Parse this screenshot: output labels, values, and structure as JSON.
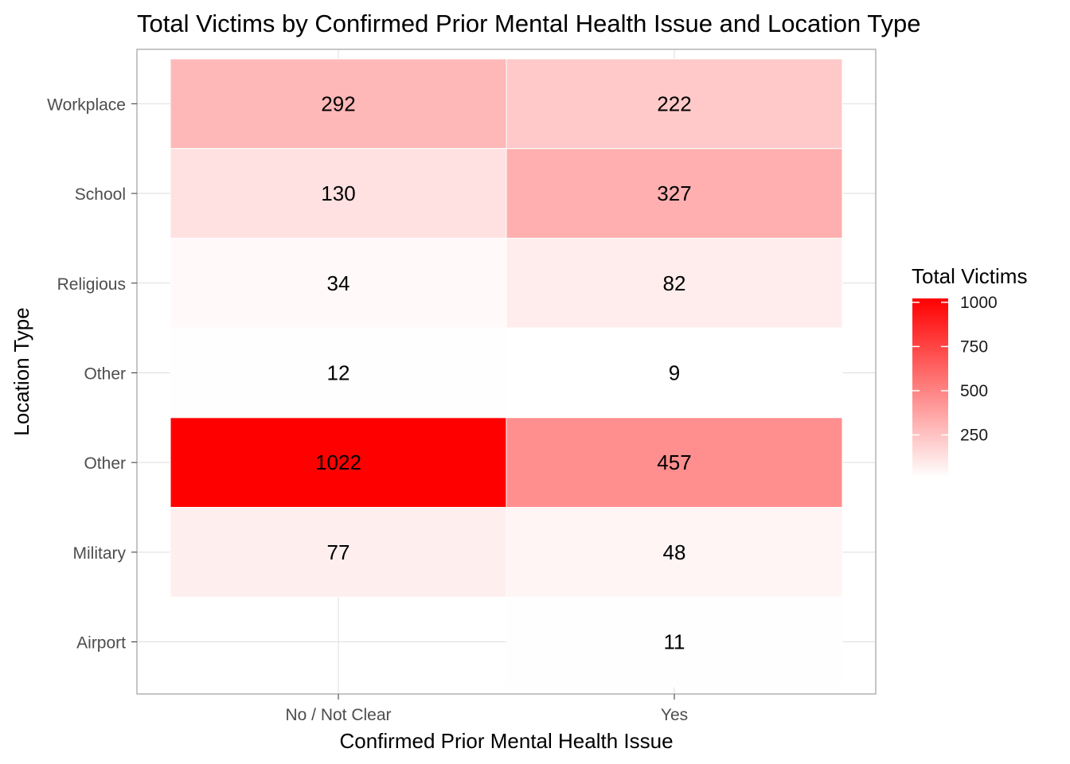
{
  "chart_data": {
    "type": "heatmap",
    "title": "Total Victims by Confirmed Prior Mental Health Issue and Location Type",
    "xlabel": "Confirmed Prior Mental Health Issue",
    "ylabel": "Location Type",
    "x_categories": [
      "No / Not Clear",
      "Yes"
    ],
    "y_categories": [
      "Workplace",
      "School",
      "Religious",
      "Other",
      "Other",
      "Military",
      "Airport"
    ],
    "cells": [
      {
        "x": "No / Not Clear",
        "y_index": 0,
        "y": "Workplace",
        "value": 292
      },
      {
        "x": "Yes",
        "y_index": 0,
        "y": "Workplace",
        "value": 222
      },
      {
        "x": "No / Not Clear",
        "y_index": 1,
        "y": "School",
        "value": 130
      },
      {
        "x": "Yes",
        "y_index": 1,
        "y": "School",
        "value": 327
      },
      {
        "x": "No / Not Clear",
        "y_index": 2,
        "y": "Religious",
        "value": 34
      },
      {
        "x": "Yes",
        "y_index": 2,
        "y": "Religious",
        "value": 82
      },
      {
        "x": "No / Not Clear",
        "y_index": 3,
        "y": "Other",
        "value": 12
      },
      {
        "x": "Yes",
        "y_index": 3,
        "y": "Other",
        "value": 9
      },
      {
        "x": "No / Not Clear",
        "y_index": 4,
        "y": "Other",
        "value": 1022
      },
      {
        "x": "Yes",
        "y_index": 4,
        "y": "Other",
        "value": 457
      },
      {
        "x": "No / Not Clear",
        "y_index": 5,
        "y": "Military",
        "value": 77
      },
      {
        "x": "Yes",
        "y_index": 5,
        "y": "Military",
        "value": 48
      },
      {
        "x": "Yes",
        "y_index": 6,
        "y": "Airport",
        "value": 11
      }
    ],
    "legend": {
      "title": "Total Victims",
      "ticks": [
        250,
        500,
        750,
        1000
      ],
      "low_color": "#ffffff",
      "high_color": "#ff0000",
      "range": [
        9,
        1022
      ],
      "placement": "right"
    },
    "grid": true
  }
}
